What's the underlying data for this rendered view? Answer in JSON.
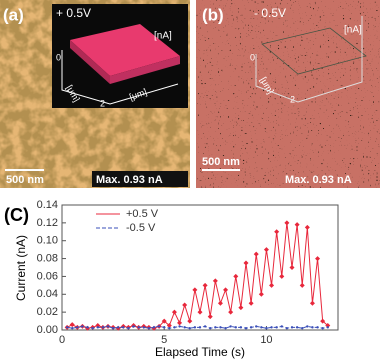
{
  "panel_a": {
    "label": "(a)",
    "bias": "+ 0.5V",
    "unit_z": "[nA]",
    "unit_x": "[μm]",
    "unit_y": "[μm]",
    "tick_0": "0",
    "tick_2": "2",
    "scale_bar": "500 nm",
    "max": "Max. 0.93 nA"
  },
  "panel_b": {
    "label": "(b)",
    "bias": "- 0.5V",
    "unit_z": "[nA]",
    "unit_x": "[μm]",
    "tick_0": "0",
    "tick_2": "2",
    "scale_bar": "500 nm",
    "max": "Max. 0.93 nA"
  },
  "chart_data": {
    "type": "line",
    "panel_label": "(C)",
    "x_label": "Elapsed Time (s)",
    "y_label": "Current (nA)",
    "x": [
      0.25,
      0.5,
      0.75,
      1.0,
      1.25,
      1.5,
      1.75,
      2.0,
      2.25,
      2.5,
      2.75,
      3.0,
      3.25,
      3.5,
      3.75,
      4.0,
      4.25,
      4.5,
      4.75,
      5.0,
      5.25,
      5.5,
      5.75,
      6.0,
      6.25,
      6.5,
      6.75,
      7.0,
      7.25,
      7.5,
      7.75,
      8.0,
      8.25,
      8.5,
      8.75,
      9.0,
      9.25,
      9.5,
      9.75,
      10.0,
      10.25,
      10.5,
      10.75,
      11.0,
      11.25,
      11.5,
      11.75,
      12.0,
      12.25,
      12.5,
      12.75,
      13.0
    ],
    "series": [
      {
        "name": "+0.5 V",
        "color": "#e8283c",
        "values": [
          0.003,
          0.006,
          0.003,
          0.004,
          0.002,
          0.003,
          0.005,
          0.003,
          0.004,
          0.003,
          0.002,
          0.004,
          0.003,
          0.005,
          0.003,
          0.004,
          0.003,
          0.002,
          0.004,
          0.01,
          0.005,
          0.02,
          0.008,
          0.028,
          0.01,
          0.045,
          0.02,
          0.05,
          0.015,
          0.055,
          0.03,
          0.045,
          0.02,
          0.06,
          0.025,
          0.075,
          0.03,
          0.085,
          0.04,
          0.09,
          0.05,
          0.11,
          0.06,
          0.12,
          0.07,
          0.118,
          0.05,
          0.115,
          0.03,
          0.08,
          0.01,
          0.005
        ]
      },
      {
        "name": "-0.5 V",
        "color": "#3a4fb8",
        "values": [
          0.003,
          0.002,
          0.003,
          0.004,
          0.003,
          0.002,
          0.003,
          0.003,
          0.004,
          0.002,
          0.003,
          0.003,
          0.002,
          0.004,
          0.003,
          0.003,
          0.002,
          0.003,
          0.004,
          0.003,
          0.002,
          0.003,
          0.004,
          0.003,
          0.002,
          0.003,
          0.003,
          0.004,
          0.002,
          0.003,
          0.003,
          0.002,
          0.004,
          0.003,
          0.003,
          0.002,
          0.003,
          0.004,
          0.003,
          0.002,
          0.003,
          0.003,
          0.004,
          0.002,
          0.003,
          0.003,
          0.002,
          0.004,
          0.003,
          0.003,
          0.002,
          0.003
        ]
      }
    ],
    "xlim": [
      0,
      13.5
    ],
    "ylim": [
      0,
      0.14
    ],
    "xticks": [
      0,
      5,
      10
    ],
    "yticks": [
      {
        "value": 0,
        "label": "0.00"
      },
      0.02,
      0.04,
      0.06,
      0.08,
      {
        "value": 0.1,
        "label": "0.10"
      },
      0.12,
      0.14
    ]
  }
}
